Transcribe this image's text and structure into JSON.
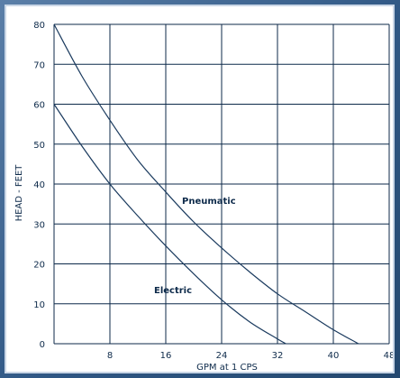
{
  "chart_data": {
    "type": "line",
    "xlabel": "GPM at 1 CPS",
    "ylabel": "HEAD - FEET",
    "xlim": [
      0,
      48
    ],
    "ylim": [
      0,
      80
    ],
    "x_ticks": [
      "8",
      "16",
      "24",
      "32",
      "40",
      "48"
    ],
    "y_ticks": [
      "0",
      "10",
      "20",
      "30",
      "40",
      "50",
      "60",
      "70",
      "80"
    ],
    "grid": true,
    "series": [
      {
        "name": "Pneumatic",
        "x": [
          0,
          4,
          8,
          12,
          16,
          20,
          24,
          28,
          32,
          36,
          40,
          43.6
        ],
        "y": [
          80,
          67,
          56,
          46,
          38,
          30.5,
          24,
          18,
          12.5,
          8,
          3.5,
          0
        ]
      },
      {
        "name": "Electric",
        "x": [
          0,
          4,
          8,
          12,
          16,
          20,
          24,
          28,
          32,
          33.2
        ],
        "y": [
          60,
          49.5,
          40,
          32,
          24.5,
          17.5,
          11,
          5.5,
          1.2,
          0
        ]
      }
    ],
    "annotations": [
      "Pneumatic",
      "Electric"
    ]
  },
  "colors": {
    "curve": "#1a3a5e",
    "grid": "#0d2a4a",
    "frame_bg": "#2f5784"
  }
}
